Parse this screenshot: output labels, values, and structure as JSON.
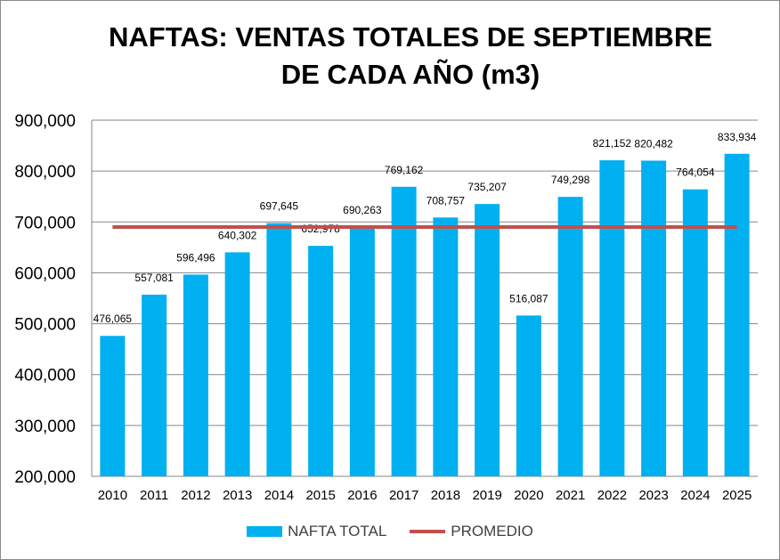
{
  "chart_data": {
    "type": "bar",
    "title_lines": [
      "NAFTAS: VENTAS TOTALES DE SEPTIEMBRE",
      "DE CADA AÑO (m3)"
    ],
    "categories": [
      "2010",
      "2011",
      "2012",
      "2013",
      "2014",
      "2015",
      "2016",
      "2017",
      "2018",
      "2019",
      "2020",
      "2021",
      "2022",
      "2023",
      "2024",
      "2025"
    ],
    "series": [
      {
        "name": "NAFTA TOTAL",
        "type": "bar",
        "color": "#00B0F0",
        "values": [
          476065,
          557081,
          596496,
          640302,
          697645,
          652978,
          690263,
          769162,
          708757,
          735207,
          516087,
          749298,
          821152,
          820482,
          764054,
          833934
        ]
      },
      {
        "name": "PROMEDIO",
        "type": "line",
        "color": "#C0504D",
        "value": 690000
      }
    ],
    "data_labels": [
      "476,065",
      "557,081",
      "596,496",
      "640,302",
      "697,645",
      "652,978",
      "690,263",
      "769,162",
      "708,757",
      "735,207",
      "516,087",
      "749,298",
      "821,152",
      "820,482",
      "764,054",
      "833,934"
    ],
    "y_ticks": [
      200000,
      300000,
      400000,
      500000,
      600000,
      700000,
      800000,
      900000
    ],
    "y_tick_labels": [
      "200,000",
      "300,000",
      "400,000",
      "500,000",
      "600,000",
      "700,000",
      "800,000",
      "900,000"
    ],
    "ylim": [
      200000,
      900000
    ],
    "grid": true,
    "legend_position": "bottom"
  }
}
